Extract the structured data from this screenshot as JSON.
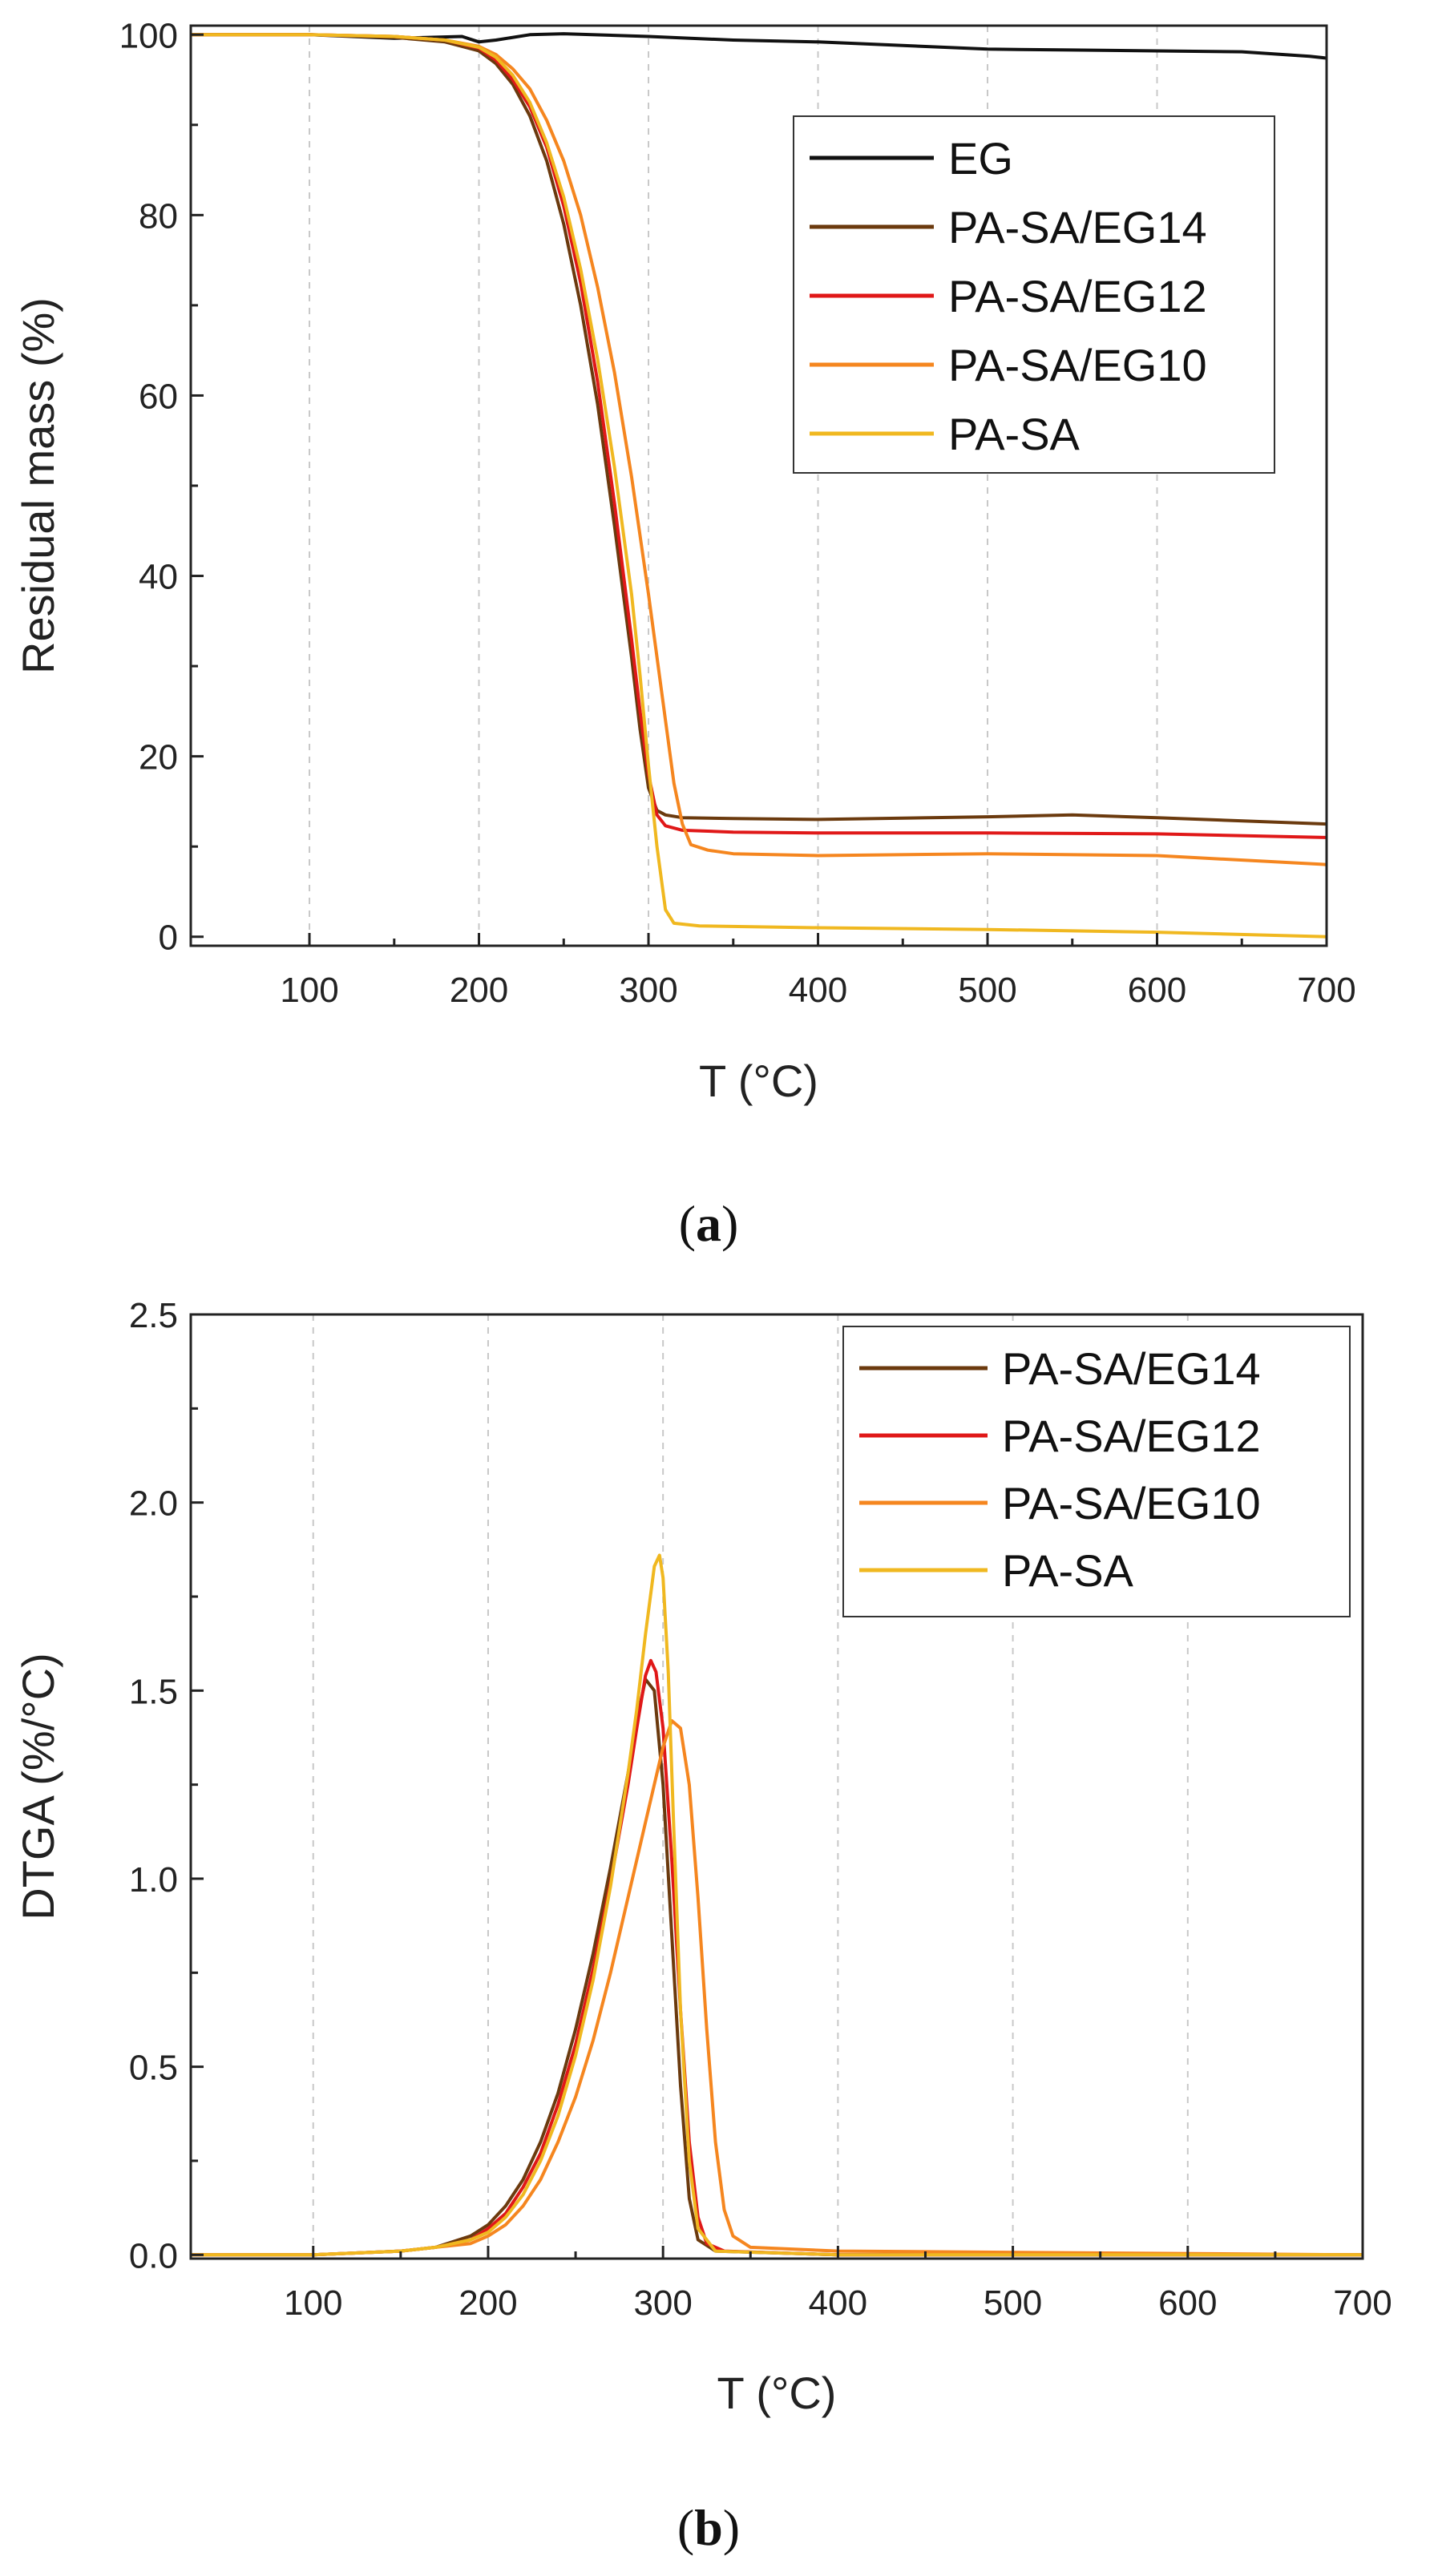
{
  "colors": {
    "EG": "#111111",
    "PA-SA/EG14": "#6b3a0e",
    "PA-SA/EG12": "#e01818",
    "PA-SA/EG10": "#f5861f",
    "PA-SA": "#f0b820"
  },
  "chart_data": [
    {
      "type": "line",
      "panel": "a",
      "panel_label": "a",
      "xlabel": "T (°C)",
      "ylabel": "Residual mass (%)",
      "xlim": [
        30,
        700
      ],
      "ylim": [
        -1,
        101
      ],
      "xticks": [
        100,
        200,
        300,
        400,
        500,
        600,
        700
      ],
      "yticks": [
        0,
        20,
        40,
        60,
        80,
        100
      ],
      "grid": "vertical dashed",
      "legend_position": "top-right",
      "series": [
        {
          "name": "EG",
          "x": [
            30,
            100,
            150,
            190,
            200,
            210,
            230,
            250,
            300,
            350,
            400,
            450,
            500,
            550,
            600,
            650,
            690,
            700
          ],
          "y": [
            100,
            100,
            99.6,
            99.8,
            99.2,
            99.4,
            100,
            100.1,
            99.8,
            99.4,
            99.2,
            98.8,
            98.4,
            98.3,
            98.2,
            98.1,
            97.6,
            97.4
          ]
        },
        {
          "name": "PA-SA/EG14",
          "x": [
            30,
            100,
            150,
            180,
            200,
            210,
            220,
            230,
            240,
            250,
            260,
            270,
            280,
            290,
            295,
            300,
            305,
            310,
            320,
            350,
            400,
            500,
            550,
            600,
            700
          ],
          "y": [
            100,
            100,
            99.7,
            99.2,
            98.2,
            96.8,
            94.5,
            91,
            86,
            79,
            70,
            59,
            45.5,
            31,
            23,
            16.5,
            14,
            13.5,
            13.2,
            13.1,
            13,
            13.3,
            13.5,
            13.2,
            12.5
          ]
        },
        {
          "name": "PA-SA/EG12",
          "x": [
            30,
            100,
            150,
            180,
            200,
            210,
            220,
            230,
            240,
            250,
            260,
            270,
            280,
            290,
            295,
            300,
            305,
            310,
            320,
            350,
            400,
            500,
            600,
            700
          ],
          "y": [
            100,
            100,
            99.8,
            99.4,
            98.5,
            97.2,
            95,
            92,
            87.5,
            81,
            72.5,
            61.5,
            48,
            33,
            25,
            18,
            13.5,
            12.3,
            11.8,
            11.6,
            11.5,
            11.5,
            11.4,
            11
          ]
        },
        {
          "name": "PA-SA/EG10",
          "x": [
            30,
            100,
            150,
            180,
            200,
            210,
            220,
            230,
            240,
            250,
            260,
            270,
            280,
            290,
            300,
            305,
            310,
            315,
            320,
            325,
            335,
            350,
            400,
            500,
            600,
            700
          ],
          "y": [
            100,
            100,
            99.8,
            99.4,
            98.7,
            97.8,
            96.2,
            94,
            90.5,
            86,
            80,
            72,
            62.5,
            51,
            38,
            31,
            24,
            17,
            12.5,
            10.2,
            9.6,
            9.2,
            9,
            9.2,
            9,
            8
          ]
        },
        {
          "name": "PA-SA",
          "x": [
            30,
            100,
            150,
            180,
            200,
            210,
            220,
            230,
            240,
            250,
            260,
            270,
            280,
            290,
            295,
            300,
            305,
            310,
            315,
            330,
            400,
            500,
            600,
            700
          ],
          "y": [
            100,
            100,
            99.8,
            99.4,
            98.6,
            97.5,
            95.5,
            92.5,
            88,
            82,
            74,
            64,
            52,
            38,
            29,
            19,
            10,
            3,
            1.5,
            1.2,
            1,
            0.8,
            0.5,
            0
          ]
        }
      ]
    },
    {
      "type": "line",
      "panel": "b",
      "panel_label": "b",
      "xlabel": "T (°C)",
      "ylabel": "DTGA (%/°C)",
      "xlim": [
        30,
        700
      ],
      "ylim": [
        -0.01,
        2.5
      ],
      "xticks": [
        100,
        200,
        300,
        400,
        500,
        600,
        700
      ],
      "yticks": [
        0.0,
        0.5,
        1.0,
        1.5,
        2.0,
        2.5
      ],
      "ytick_labels": [
        "0.0",
        "0.5",
        "1.0",
        "1.5",
        "2.0",
        "2.5"
      ],
      "grid": "vertical dashed",
      "legend_position": "top-right",
      "series": [
        {
          "name": "PA-SA/EG14",
          "x": [
            30,
            100,
            150,
            170,
            190,
            200,
            210,
            220,
            230,
            240,
            250,
            260,
            270,
            280,
            285,
            290,
            295,
            300,
            305,
            310,
            315,
            320,
            330,
            400,
            700
          ],
          "y": [
            0,
            0,
            0.01,
            0.02,
            0.05,
            0.08,
            0.13,
            0.2,
            0.3,
            0.43,
            0.6,
            0.8,
            1.03,
            1.28,
            1.42,
            1.53,
            1.5,
            1.25,
            0.85,
            0.45,
            0.15,
            0.04,
            0.01,
            0,
            0
          ]
        },
        {
          "name": "PA-SA/EG12",
          "x": [
            30,
            100,
            150,
            170,
            190,
            200,
            210,
            220,
            230,
            240,
            250,
            260,
            270,
            280,
            285,
            290,
            293,
            296,
            300,
            305,
            310,
            315,
            320,
            325,
            335,
            400,
            700
          ],
          "y": [
            0,
            0,
            0.01,
            0.02,
            0.04,
            0.07,
            0.11,
            0.18,
            0.27,
            0.4,
            0.56,
            0.76,
            0.99,
            1.25,
            1.4,
            1.54,
            1.58,
            1.55,
            1.4,
            1.05,
            0.65,
            0.3,
            0.1,
            0.03,
            0.01,
            0,
            0
          ]
        },
        {
          "name": "PA-SA/EG10",
          "x": [
            30,
            100,
            150,
            170,
            190,
            200,
            210,
            220,
            230,
            240,
            250,
            260,
            270,
            280,
            290,
            300,
            305,
            310,
            315,
            320,
            325,
            330,
            335,
            340,
            350,
            400,
            700
          ],
          "y": [
            0,
            0,
            0.01,
            0.02,
            0.03,
            0.05,
            0.08,
            0.13,
            0.2,
            0.3,
            0.42,
            0.57,
            0.75,
            0.95,
            1.15,
            1.35,
            1.42,
            1.4,
            1.25,
            0.95,
            0.6,
            0.3,
            0.12,
            0.05,
            0.02,
            0.01,
            0
          ]
        },
        {
          "name": "PA-SA",
          "x": [
            30,
            100,
            150,
            170,
            190,
            200,
            210,
            220,
            230,
            240,
            250,
            260,
            270,
            280,
            285,
            290,
            295,
            298,
            300,
            303,
            306,
            310,
            315,
            320,
            330,
            400,
            700
          ],
          "y": [
            0,
            0,
            0.01,
            0.02,
            0.04,
            0.06,
            0.1,
            0.16,
            0.25,
            0.37,
            0.53,
            0.73,
            0.98,
            1.28,
            1.45,
            1.65,
            1.83,
            1.86,
            1.8,
            1.55,
            1.15,
            0.65,
            0.25,
            0.07,
            0.01,
            0,
            0
          ]
        }
      ]
    }
  ]
}
